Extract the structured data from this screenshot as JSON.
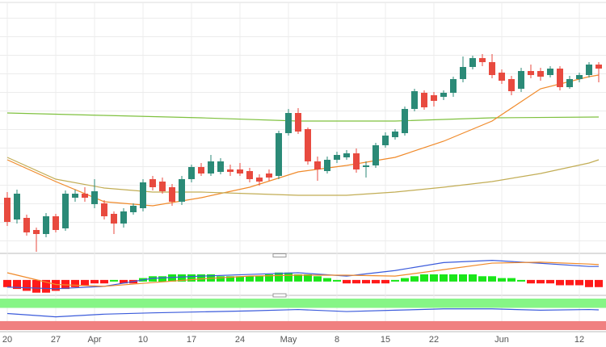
{
  "chart_data": [
    {
      "type": "candlestick",
      "categories": [
        "20",
        null,
        null,
        null,
        null,
        "27",
        null,
        null,
        null,
        "Apr",
        null,
        null,
        null,
        null,
        "10",
        null,
        null,
        null,
        null,
        "17",
        null,
        null,
        null,
        null,
        "24",
        null,
        null,
        null,
        null,
        "May",
        null,
        null,
        null,
        null,
        "8",
        null,
        null,
        null,
        null,
        "15",
        null,
        null,
        null,
        null,
        "22",
        null,
        null,
        null,
        null,
        null,
        null,
        "Jun",
        null,
        null,
        null,
        null,
        null,
        null,
        null,
        "12",
        null,
        null
      ],
      "open": [
        65,
        38,
        40,
        25,
        20,
        42,
        27,
        65,
        70,
        57,
        58,
        45,
        33,
        47,
        52,
        88,
        85,
        78,
        60,
        88,
        103,
        95,
        97,
        100,
        100,
        98,
        90,
        95,
        92,
        145,
        170,
        150,
        110,
        98,
        112,
        115,
        120,
        103,
        105,
        130,
        140,
        145,
        175,
        195,
        192,
        190,
        195,
        212,
        227,
        238,
        233,
        220,
        212,
        200,
        222,
        222,
        217,
        225,
        202,
        212,
        217,
        230
      ],
      "high": [
        72,
        75,
        44,
        28,
        46,
        45,
        74,
        75,
        78,
        88,
        62,
        48,
        52,
        58,
        88,
        92,
        90,
        82,
        92,
        106,
        108,
        118,
        114,
        106,
        108,
        102,
        94,
        100,
        148,
        175,
        176,
        152,
        116,
        116,
        122,
        124,
        126,
        110,
        133,
        146,
        150,
        178,
        200,
        198,
        196,
        198,
        215,
        240,
        241,
        243,
        243,
        224,
        216,
        226,
        230,
        226,
        228,
        228,
        216,
        220,
        233,
        233
      ],
      "low": [
        30,
        33,
        18,
        -2,
        16,
        22,
        24,
        60,
        60,
        52,
        38,
        20,
        28,
        44,
        48,
        74,
        70,
        55,
        56,
        84,
        92,
        92,
        94,
        92,
        92,
        84,
        80,
        86,
        88,
        142,
        144,
        106,
        86,
        95,
        108,
        112,
        96,
        90,
        102,
        127,
        137,
        142,
        172,
        174,
        178,
        186,
        190,
        208,
        224,
        228,
        213,
        206,
        192,
        196,
        213,
        210,
        214,
        198,
        200,
        208,
        214,
        208
      ],
      "close": [
        35,
        70,
        22,
        20,
        42,
        25,
        70,
        70,
        65,
        73,
        42,
        33,
        48,
        55,
        84,
        78,
        73,
        60,
        88,
        103,
        95,
        110,
        110,
        97,
        95,
        88,
        85,
        90,
        145,
        170,
        147,
        110,
        100,
        112,
        118,
        120,
        100,
        105,
        130,
        142,
        147,
        175,
        197,
        177,
        185,
        195,
        212,
        227,
        238,
        233,
        217,
        210,
        197,
        222,
        217,
        215,
        225,
        202,
        212,
        217,
        230,
        225
      ],
      "up_color": "#2b8a77",
      "down_color": "#e84a3f",
      "ylim": [
        -5,
        310
      ],
      "series": [
        {
          "color": "#7fc13f",
          "x": [
            0,
            10,
            20,
            30,
            40,
            50,
            61
          ],
          "values": [
            170,
            167,
            164,
            160,
            160,
            164,
            165
          ]
        },
        {
          "color": "#f08a2a",
          "x": [
            0,
            5,
            10,
            15,
            20,
            25,
            30,
            35,
            40,
            45,
            50,
            55,
            60,
            61
          ],
          "values": [
            112,
            85,
            60,
            55,
            65,
            78,
            97,
            105,
            115,
            135,
            160,
            200,
            215,
            217
          ]
        },
        {
          "color": "#c2ad55",
          "x": [
            0,
            5,
            10,
            15,
            20,
            25,
            30,
            35,
            40,
            45,
            50,
            55,
            60,
            61
          ],
          "values": [
            115,
            88,
            77,
            72,
            72,
            70,
            68,
            68,
            72,
            78,
            85,
            95,
            108,
            112
          ]
        }
      ]
    },
    {
      "type": "bar",
      "values": [
        -3,
        -4,
        -5,
        -6,
        -6,
        -5,
        -4,
        -3,
        -2,
        -1,
        -1,
        0,
        -1,
        -1,
        1,
        2,
        2,
        3,
        3,
        3,
        3,
        3,
        2,
        2,
        2,
        2,
        2,
        3,
        4,
        4,
        3,
        3,
        2,
        1,
        0,
        -1,
        -1,
        -1,
        -1,
        -1,
        0,
        1,
        2,
        3,
        3,
        3,
        3,
        3,
        3,
        2,
        2,
        1,
        1,
        0,
        -1,
        -1,
        -1,
        -2,
        -2,
        -2,
        -3,
        -3
      ],
      "positive_color": "#19e619",
      "negative_color": "#ff1a1a",
      "ylim": [
        -7,
        13
      ],
      "series": [
        {
          "color": "#3b5bdb",
          "x": [
            0,
            5,
            10,
            15,
            20,
            25,
            30,
            35,
            40,
            45,
            50,
            55,
            60,
            61
          ],
          "values": [
            -3.4,
            -4.3,
            -3,
            1.3,
            2.5,
            3.4,
            4.3,
            2.5,
            5.5,
            9.8,
            11,
            9.4,
            7.7,
            7.7
          ]
        },
        {
          "color": "#f08a2a",
          "x": [
            0,
            5,
            10,
            15,
            20,
            25,
            30,
            35,
            40,
            45,
            50,
            55,
            60,
            61
          ],
          "values": [
            4.3,
            -2,
            -3,
            -1,
            1,
            2.5,
            3,
            3,
            2.5,
            6,
            9.5,
            10,
            9,
            8.7
          ]
        }
      ]
    },
    {
      "type": "line",
      "ylim": [
        0,
        100
      ],
      "bands": [
        {
          "from": 67,
          "to": 95,
          "color": "#86f586"
        },
        {
          "from": 0,
          "to": 27,
          "color": "#f08080"
        }
      ],
      "series": [
        {
          "color": "#3b5bdb",
          "x": [
            0,
            5,
            10,
            15,
            20,
            25,
            30,
            35,
            40,
            45,
            50,
            55,
            60,
            61
          ],
          "values": [
            50,
            40,
            48,
            52,
            55,
            58,
            62,
            56,
            60,
            64,
            64,
            60,
            62,
            61
          ]
        }
      ]
    }
  ]
}
